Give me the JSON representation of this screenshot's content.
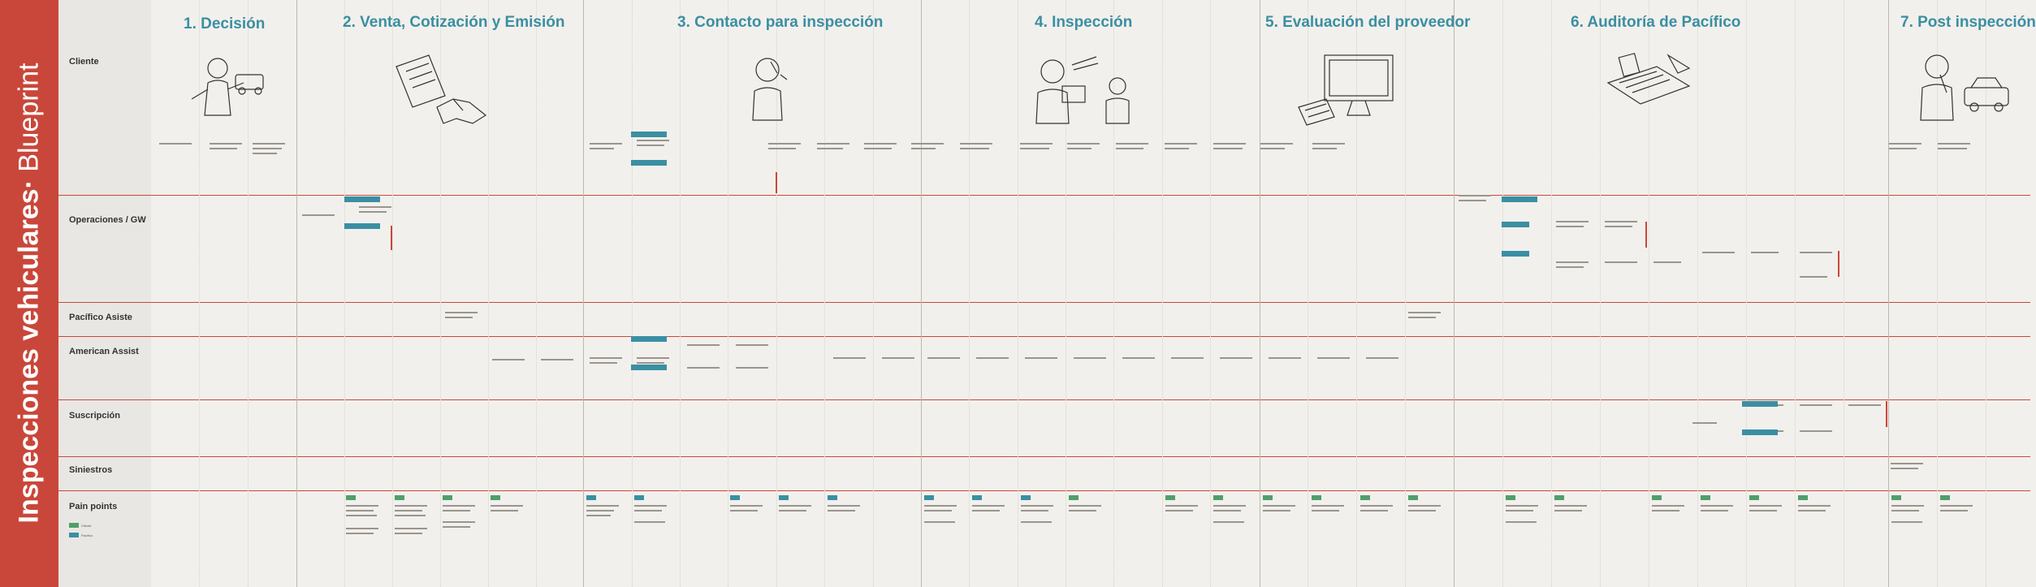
{
  "page": {
    "title_main": "Inspecciones vehiculares·",
    "title_sub": " Blueprint"
  },
  "colors": {
    "accent_red": "#c9473a",
    "accent_teal": "#3a8fa3",
    "pain_green": "#4f9f6a"
  },
  "phases": [
    {
      "label": "1. Decisión"
    },
    {
      "label": "2. Venta, Cotización y Emisión"
    },
    {
      "label": "3. Contacto para inspección"
    },
    {
      "label": "4. Inspección"
    },
    {
      "label": "5. Evaluación del proveedor"
    },
    {
      "label": "6. Auditoría de Pacífico"
    },
    {
      "label": "7. Post inspección"
    }
  ],
  "lanes": [
    {
      "label": "Cliente"
    },
    {
      "label": "Operaciones / GW"
    },
    {
      "label": "Pacífico Asiste"
    },
    {
      "label": "American Assist"
    },
    {
      "label": "Suscripción"
    },
    {
      "label": "Siniestros"
    },
    {
      "label": "Pain points"
    }
  ],
  "legend": [
    {
      "label": "Cliente"
    },
    {
      "label": "Pacífico"
    }
  ],
  "illustrations": [
    {
      "icon": "person-with-car-icon"
    },
    {
      "icon": "contract-handshake-icon"
    },
    {
      "icon": "person-on-phone-icon"
    },
    {
      "icon": "inspection-people-icon"
    },
    {
      "icon": "computer-monitor-icon"
    },
    {
      "icon": "audit-documents-icon"
    },
    {
      "icon": "person-thinking-car-icon"
    }
  ]
}
